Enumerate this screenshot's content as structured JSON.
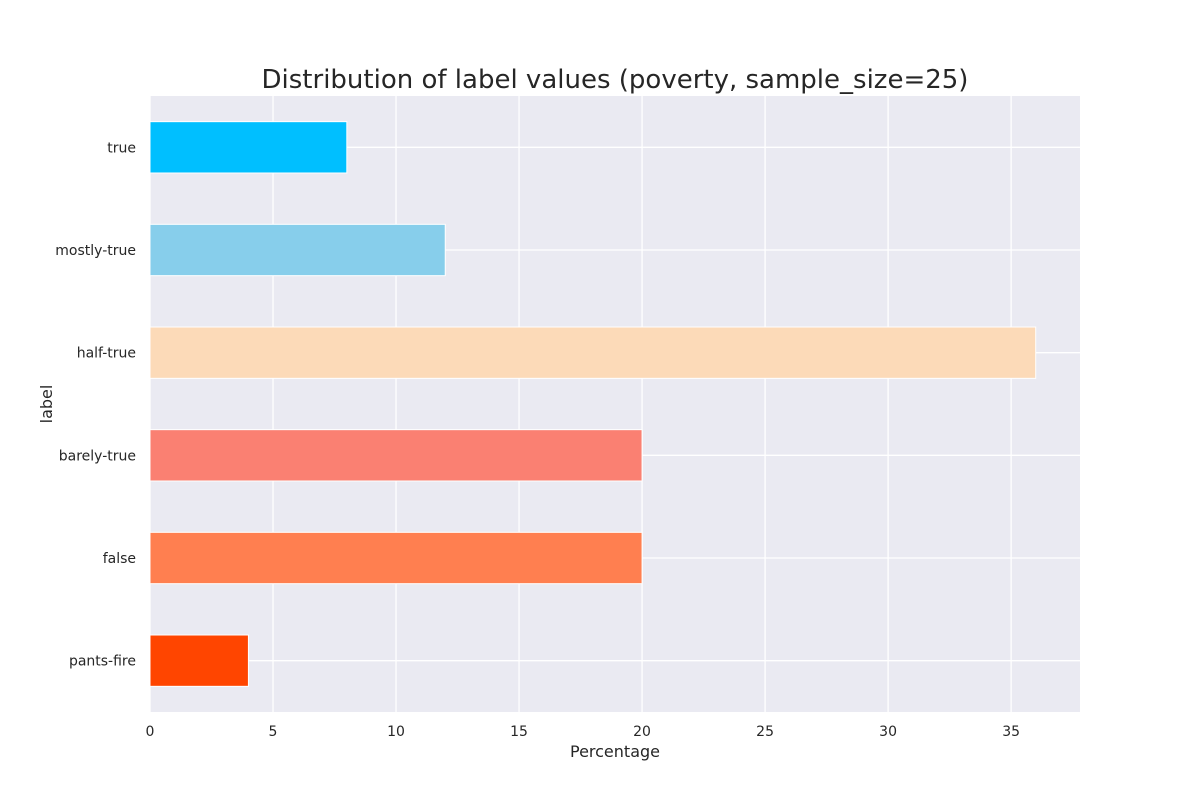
{
  "chart_data": {
    "type": "bar",
    "orientation": "horizontal",
    "title": "Distribution of label values (poverty, sample_size=25)",
    "xlabel": "Percentage",
    "ylabel": "label",
    "categories": [
      "true",
      "mostly-true",
      "half-true",
      "barely-true",
      "false",
      "pants-fire"
    ],
    "values": [
      8,
      12,
      36,
      20,
      20,
      4
    ],
    "colors": [
      "#00bfff",
      "#87ceeb",
      "#fcdab8",
      "#fa8072",
      "#ff7f50",
      "#ff4500"
    ],
    "xlim": [
      0,
      37.8
    ],
    "xticks": [
      "0",
      "5",
      "10",
      "15",
      "20",
      "25",
      "30",
      "35"
    ],
    "grid": true,
    "background": "#eaeaf2",
    "legend": "none"
  }
}
